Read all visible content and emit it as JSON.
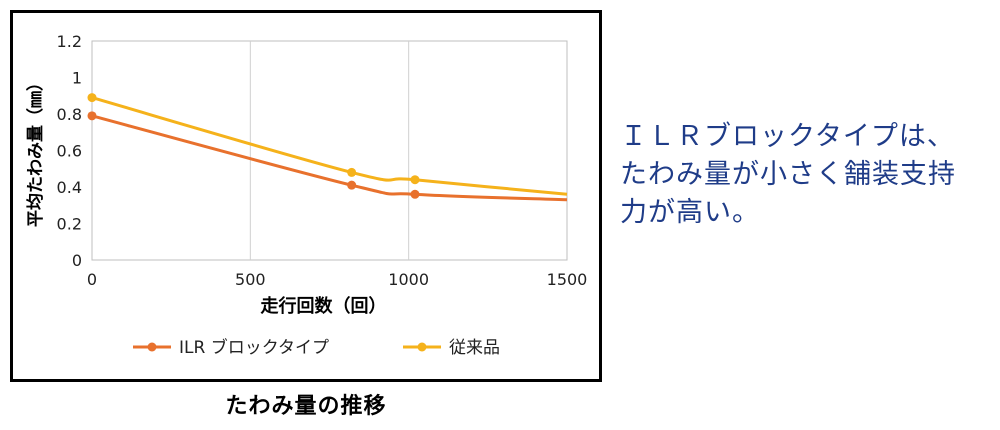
{
  "chart_data": {
    "type": "line",
    "xlabel": "走行回数（回）",
    "ylabel": "平均たわみ量（㎜）",
    "xlim": [
      0,
      1500
    ],
    "ylim": [
      0,
      1.2
    ],
    "x_ticks": [
      "0",
      "500",
      "1000",
      "1500"
    ],
    "y_ticks": [
      "0",
      "0.2",
      "0.4",
      "0.6",
      "0.8",
      "1",
      "1.2"
    ],
    "grid": "vertical",
    "legend": "bottom",
    "series": [
      {
        "name": "ILR ブロックタイプ",
        "color": "#e8712d",
        "x": [
          0,
          820,
          1020,
          1500
        ],
        "y": [
          0.79,
          0.41,
          0.36,
          0.33
        ]
      },
      {
        "name": "従来品",
        "color": "#f5b21b",
        "x": [
          0,
          820,
          1020,
          1500
        ],
        "y": [
          0.89,
          0.48,
          0.44,
          0.36
        ]
      }
    ]
  },
  "caption": "たわみ量の推移",
  "side_text": [
    "ＩＬＲブロックタイプは、",
    "たわみ量が小さく舗装支持",
    "力が高い。"
  ]
}
